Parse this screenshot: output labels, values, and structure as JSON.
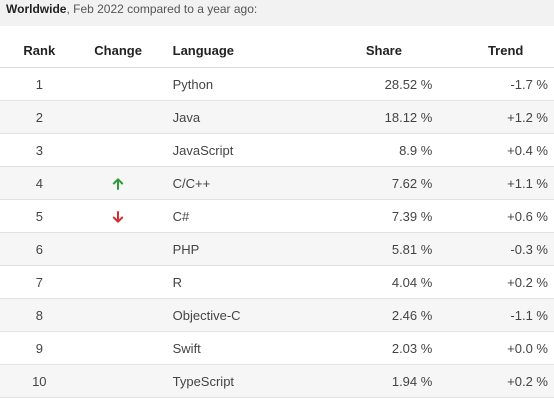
{
  "caption": {
    "strong": "Worldwide",
    "rest": ", Feb 2022 compared to a year ago:"
  },
  "table": {
    "headers": {
      "rank": "Rank",
      "change": "Change",
      "language": "Language",
      "share": "Share",
      "trend": "Trend"
    },
    "rows": [
      {
        "rank": "1",
        "change": "",
        "language": "Python",
        "share": "28.52 %",
        "trend": "-1.7 %"
      },
      {
        "rank": "2",
        "change": "",
        "language": "Java",
        "share": "18.12 %",
        "trend": "+1.2 %"
      },
      {
        "rank": "3",
        "change": "",
        "language": "JavaScript",
        "share": "8.9 %",
        "trend": "+0.4 %"
      },
      {
        "rank": "4",
        "change": "up-arrow-icon",
        "language": "C/C++",
        "share": "7.62 %",
        "trend": "+1.1 %"
      },
      {
        "rank": "5",
        "change": "down-arrow-icon",
        "language": "C#",
        "share": "7.39 %",
        "trend": "+0.6 %"
      },
      {
        "rank": "6",
        "change": "",
        "language": "PHP",
        "share": "5.81 %",
        "trend": "-0.3 %"
      },
      {
        "rank": "7",
        "change": "",
        "language": "R",
        "share": "4.04 %",
        "trend": "+0.2 %"
      },
      {
        "rank": "8",
        "change": "",
        "language": "Objective-C",
        "share": "2.46 %",
        "trend": "-1.1 %"
      },
      {
        "rank": "9",
        "change": "",
        "language": "Swift",
        "share": "2.03 %",
        "trend": "+0.0 %"
      },
      {
        "rank": "10",
        "change": "",
        "language": "TypeScript",
        "share": "1.94 %",
        "trend": "+0.2 %"
      }
    ]
  },
  "colors": {
    "up": "#2e9b3a",
    "down": "#d32f2f"
  }
}
